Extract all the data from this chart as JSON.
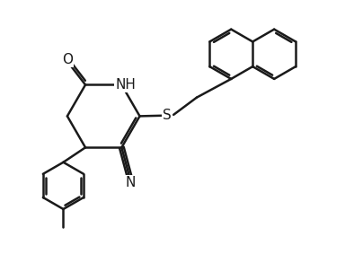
{
  "background_color": "#ffffff",
  "line_color": "#1a1a1a",
  "line_width": 1.8,
  "dbo": 0.07,
  "font_size": 11,
  "figsize": [
    3.84,
    2.83
  ],
  "dpi": 100,
  "xlim": [
    0,
    10
  ],
  "ylim": [
    0,
    7.37
  ]
}
